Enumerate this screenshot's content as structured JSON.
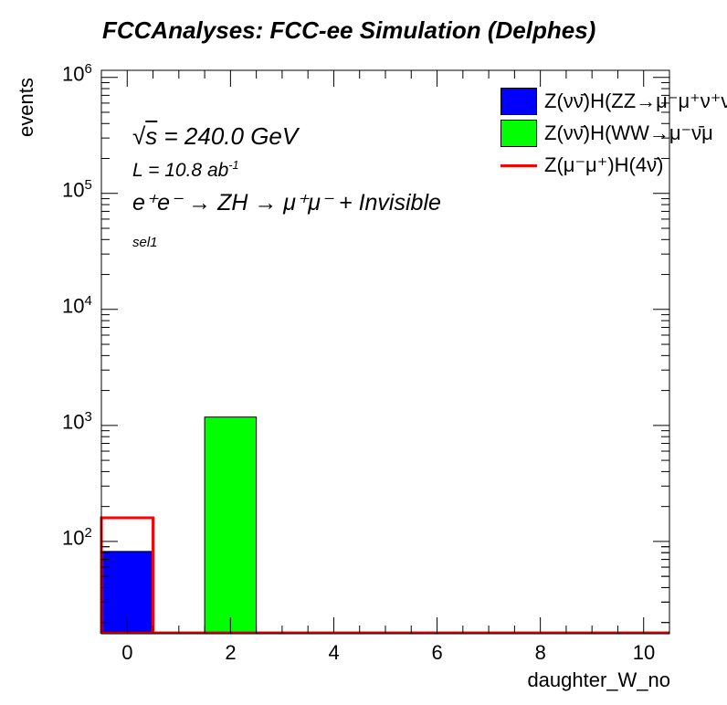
{
  "chart_data": {
    "type": "bar",
    "title": "FCCAnalyses: FCC-ee Simulation (Delphes)",
    "xlabel": "daughter_W_no",
    "ylabel": "events",
    "xlim": [
      -0.5,
      10.5
    ],
    "ylim": [
      16,
      1150000
    ],
    "yscale": "log",
    "x_ticks": [
      "0",
      "2",
      "4",
      "6",
      "8",
      "10"
    ],
    "y_ticks": [
      {
        "base": "10",
        "exp": "2",
        "value": 100
      },
      {
        "base": "10",
        "exp": "3",
        "value": 1000
      },
      {
        "base": "10",
        "exp": "4",
        "value": 10000
      },
      {
        "base": "10",
        "exp": "5",
        "value": 100000
      },
      {
        "base": "10",
        "exp": "6",
        "value": 1000000
      }
    ],
    "series": [
      {
        "name": "Z(νν̄)H(ZZ→μ⁻μ⁺ν⁺ν)",
        "style": "filled",
        "color": "#0000ff",
        "bins": [
          {
            "low": -0.5,
            "high": 0.5,
            "value": 82
          }
        ]
      },
      {
        "name": "Z(νν̄)H(WW→μ⁻ν̄μ⁺ν)",
        "style": "filled",
        "color": "#00ff00",
        "bins": [
          {
            "low": 1.5,
            "high": 2.5,
            "value": 1180
          }
        ]
      },
      {
        "name": "Z(μ⁻μ⁺)H(4ν̄)",
        "style": "line",
        "color": "#ff0000",
        "bins": [
          {
            "low": -0.5,
            "high": 0.5,
            "value": 160
          }
        ]
      }
    ],
    "legend_placement": "top-right",
    "annotations": {
      "sqrt_s": "= 240.0 GeV",
      "lumi": "L = 10.8 ab",
      "lumi_exp": "-1",
      "process": "e⁺e⁻ → ZH → μ⁺μ⁻ + Invisible",
      "selection": "sel1"
    },
    "legend": [
      {
        "label": "Z(νν̄)H(ZZ→μ⁻μ⁺ν⁺ν",
        "type": "box",
        "color": "#0000ff"
      },
      {
        "label": "Z(νν̄)H(WW→μ⁻ν̄μ",
        "type": "box",
        "color": "#00ff00"
      },
      {
        "label": "Z(μ⁻μ⁺)H(4ν̄)",
        "type": "line",
        "color": "#ff0000"
      }
    ]
  }
}
